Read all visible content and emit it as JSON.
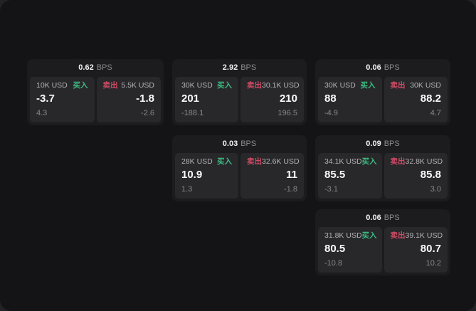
{
  "labels": {
    "bps_unit": "BPS",
    "buy": "买入",
    "sell": "卖出"
  },
  "colors": {
    "buy_green": "#3dbd82",
    "sell_red": "#d04a64",
    "surface": "#141417",
    "card_background": "#1c1c1f",
    "pane_background": "#28282b"
  },
  "cards": [
    {
      "spread_bps": "0.62",
      "buy": {
        "notional": "10K USD",
        "price": "-3.7",
        "delta": "4.3"
      },
      "sell": {
        "notional": "5.5K USD",
        "price": "-1.8",
        "delta": "-2.6"
      }
    },
    {
      "spread_bps": "2.92",
      "buy": {
        "notional": "30K USD",
        "price": "201",
        "delta": "-188.1"
      },
      "sell": {
        "notional": "30.1K USD",
        "price": "210",
        "delta": "196.5"
      }
    },
    {
      "spread_bps": "0.06",
      "buy": {
        "notional": "30K USD",
        "price": "88",
        "delta": "-4.9"
      },
      "sell": {
        "notional": "30K USD",
        "price": "88.2",
        "delta": "4.7"
      }
    },
    {
      "spread_bps": "0.03",
      "buy": {
        "notional": "28K USD",
        "price": "10.9",
        "delta": "1.3"
      },
      "sell": {
        "notional": "32.6K USD",
        "price": "11",
        "delta": "-1.8"
      }
    },
    {
      "spread_bps": "0.09",
      "buy": {
        "notional": "34.1K USD",
        "price": "85.5",
        "delta": "-3.1"
      },
      "sell": {
        "notional": "32.8K USD",
        "price": "85.8",
        "delta": "3.0"
      }
    },
    {
      "spread_bps": "0.06",
      "buy": {
        "notional": "31.8K USD",
        "price": "80.5",
        "delta": "-10.8"
      },
      "sell": {
        "notional": "39.1K USD",
        "price": "80.7",
        "delta": "10.2"
      }
    }
  ]
}
